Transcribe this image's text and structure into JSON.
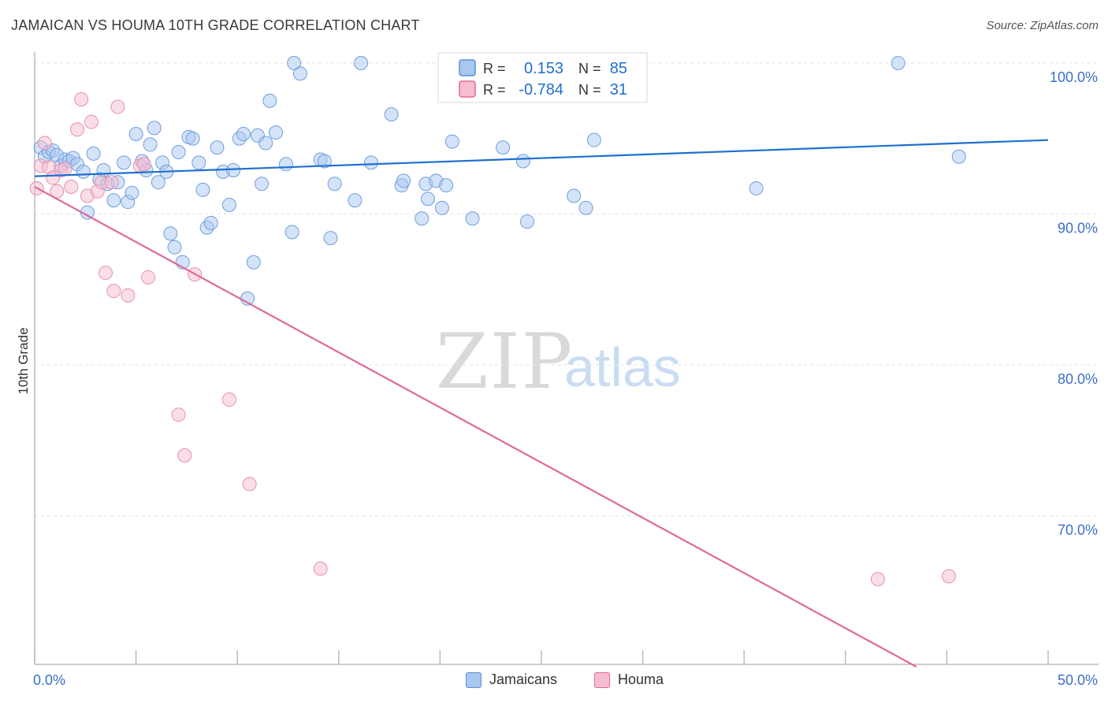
{
  "header": {
    "title": "JAMAICAN VS HOUMA 10TH GRADE CORRELATION CHART",
    "source": "Source: ZipAtlas.com"
  },
  "watermark": {
    "zip": "ZIP",
    "atlas": "atlas"
  },
  "colors": {
    "blue": "#1f6fd0",
    "blue_fill": "#a9c8ef",
    "pink": "#e0689a",
    "pink_fill": "#f6bdd0",
    "grid": "#dfe3ea",
    "tick_label": "#3b6fc6"
  },
  "legend_top": {
    "r_label": "R =",
    "n_label": "N =",
    "rows": [
      {
        "r": "0.153",
        "n": "85",
        "swatch_color": "#a9c8ef",
        "swatch_border": "#5a8fd6"
      },
      {
        "r": "-0.784",
        "n": "31",
        "swatch_color": "#f6bdd0",
        "swatch_border": "#e0689a"
      }
    ]
  },
  "legend_bottom": [
    {
      "label": "Jamaicans",
      "color": "#a9c8ef",
      "border": "#5a8fd6"
    },
    {
      "label": "Houma",
      "color": "#f6bdd0",
      "border": "#e0689a"
    }
  ],
  "chart_data": {
    "type": "scatter",
    "title": "JAMAICAN VS HOUMA 10TH GRADE CORRELATION CHART",
    "xlabel": "",
    "ylabel": "10th Grade",
    "xlim": [
      0,
      50
    ],
    "ylim": [
      61.5,
      101.5
    ],
    "x_tick_labels": [
      "0.0%",
      "50.0%"
    ],
    "y_ticks": [
      100,
      90,
      80,
      70
    ],
    "y_tick_labels": [
      "100.0%",
      "90.0%",
      "80.0%",
      "70.0%"
    ],
    "grid": "horizontal dashed",
    "legend_placement": "top-center and bottom",
    "series": [
      {
        "name": "Jamaicans",
        "r": 0.153,
        "n": 85,
        "trend": [
          [
            0,
            92.5
          ],
          [
            50,
            94.9
          ]
        ],
        "points": [
          [
            0.3,
            94.4
          ],
          [
            0.5,
            93.8
          ],
          [
            0.7,
            94.1
          ],
          [
            0.9,
            94.2
          ],
          [
            1.1,
            93.9
          ],
          [
            1.3,
            93.2
          ],
          [
            1.5,
            93.6
          ],
          [
            1.7,
            93.5
          ],
          [
            1.9,
            93.7
          ],
          [
            2.1,
            93.3
          ],
          [
            2.4,
            92.8
          ],
          [
            2.6,
            90.1
          ],
          [
            2.9,
            94.0
          ],
          [
            3.2,
            92.3
          ],
          [
            3.4,
            92.9
          ],
          [
            3.6,
            92.0
          ],
          [
            3.9,
            90.9
          ],
          [
            4.1,
            92.1
          ],
          [
            4.4,
            93.4
          ],
          [
            4.6,
            90.8
          ],
          [
            4.8,
            91.4
          ],
          [
            5.0,
            95.3
          ],
          [
            5.3,
            93.5
          ],
          [
            5.5,
            92.9
          ],
          [
            5.7,
            94.6
          ],
          [
            5.9,
            95.7
          ],
          [
            6.1,
            92.1
          ],
          [
            6.3,
            93.4
          ],
          [
            6.5,
            92.8
          ],
          [
            6.7,
            88.7
          ],
          [
            6.9,
            87.8
          ],
          [
            7.1,
            94.1
          ],
          [
            7.3,
            86.8
          ],
          [
            7.6,
            95.1
          ],
          [
            7.8,
            95.0
          ],
          [
            8.1,
            93.4
          ],
          [
            8.3,
            91.6
          ],
          [
            8.5,
            89.1
          ],
          [
            8.7,
            89.4
          ],
          [
            9.0,
            94.4
          ],
          [
            9.3,
            92.8
          ],
          [
            9.6,
            90.6
          ],
          [
            9.8,
            92.9
          ],
          [
            10.1,
            95.0
          ],
          [
            10.3,
            95.3
          ],
          [
            10.5,
            84.4
          ],
          [
            10.8,
            86.8
          ],
          [
            11.0,
            95.2
          ],
          [
            11.2,
            92.0
          ],
          [
            11.4,
            94.7
          ],
          [
            11.6,
            97.5
          ],
          [
            11.9,
            95.4
          ],
          [
            12.4,
            93.3
          ],
          [
            12.7,
            88.8
          ],
          [
            12.8,
            100.0
          ],
          [
            13.1,
            99.3
          ],
          [
            14.1,
            93.6
          ],
          [
            14.3,
            93.5
          ],
          [
            14.6,
            88.4
          ],
          [
            14.8,
            92.0
          ],
          [
            15.8,
            90.9
          ],
          [
            16.1,
            100.0
          ],
          [
            16.6,
            93.4
          ],
          [
            17.6,
            96.6
          ],
          [
            18.1,
            91.9
          ],
          [
            18.2,
            92.2
          ],
          [
            19.1,
            89.7
          ],
          [
            19.3,
            92.0
          ],
          [
            19.4,
            91.0
          ],
          [
            19.8,
            92.2
          ],
          [
            20.1,
            90.4
          ],
          [
            20.3,
            91.9
          ],
          [
            20.6,
            94.8
          ],
          [
            21.6,
            89.7
          ],
          [
            23.1,
            94.4
          ],
          [
            24.1,
            93.5
          ],
          [
            24.3,
            89.5
          ],
          [
            26.6,
            91.2
          ],
          [
            27.1,
            100.0
          ],
          [
            27.2,
            90.4
          ],
          [
            27.6,
            94.9
          ],
          [
            28.1,
            100.0
          ],
          [
            35.6,
            91.7
          ],
          [
            42.6,
            100.0
          ],
          [
            45.6,
            93.8
          ]
        ]
      },
      {
        "name": "Houma",
        "r": -0.784,
        "n": 31,
        "trend": [
          [
            0,
            91.8
          ],
          [
            43.5,
            60.0
          ]
        ],
        "points": [
          [
            0.1,
            91.7
          ],
          [
            0.3,
            93.2
          ],
          [
            0.5,
            94.7
          ],
          [
            0.7,
            93.1
          ],
          [
            0.9,
            92.4
          ],
          [
            1.1,
            91.5
          ],
          [
            1.3,
            92.9
          ],
          [
            1.5,
            93.0
          ],
          [
            1.8,
            91.8
          ],
          [
            2.1,
            95.6
          ],
          [
            2.3,
            97.6
          ],
          [
            2.6,
            91.2
          ],
          [
            2.8,
            96.1
          ],
          [
            3.1,
            91.5
          ],
          [
            3.3,
            92.1
          ],
          [
            3.5,
            86.1
          ],
          [
            3.8,
            92.1
          ],
          [
            3.9,
            84.9
          ],
          [
            4.1,
            97.1
          ],
          [
            4.6,
            84.6
          ],
          [
            5.2,
            93.2
          ],
          [
            5.4,
            93.3
          ],
          [
            5.6,
            85.8
          ],
          [
            7.1,
            76.7
          ],
          [
            7.4,
            74.0
          ],
          [
            7.9,
            86.0
          ],
          [
            9.6,
            77.7
          ],
          [
            10.6,
            72.1
          ],
          [
            14.1,
            66.5
          ],
          [
            41.6,
            65.8
          ],
          [
            45.1,
            66.0
          ]
        ]
      }
    ]
  }
}
